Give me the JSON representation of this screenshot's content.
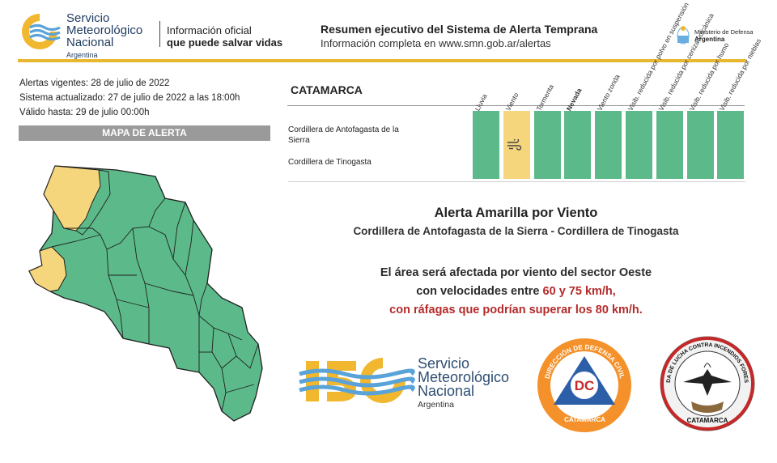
{
  "header": {
    "logo": {
      "line1": "Servicio",
      "line2": "Meteorológico",
      "line3": "Nacional",
      "line4": "Argentina"
    },
    "tagline": {
      "line1": "Información oficial",
      "line2": "que puede salvar vidas"
    },
    "summary_title": "Resumen ejecutivo del Sistema de Alerta Temprana",
    "summary_subtitle": "Información completa en www.smn.gob.ar/alertas",
    "ministry": {
      "line1": "Ministerio de Defensa",
      "line2": "Argentina"
    }
  },
  "info": {
    "vigentes": "Alertas vigentes: 28 de julio de 2022",
    "actualizado": "Sistema actualizado: 27 de julio de 2022 a las 18:00h",
    "valido": "Válido hasta: 29 de julio 00:00h"
  },
  "map_title": "MAPA DE ALERTA",
  "table": {
    "region": "CATAMARCA",
    "columns": [
      "Lluvia",
      "Viento",
      "Tormenta",
      "Nevada",
      "Viento zonda",
      "Visib. reducida por polvo en suspensión",
      "Visib. reducida por ceniza volcánica",
      "Visib. reducida por humo",
      "Visib. reducida por nieblas"
    ],
    "zones": [
      {
        "label": "Cordillera de Antofagasta de la Sierra"
      },
      {
        "label": "Cordillera de Tinogasta"
      }
    ],
    "levels": [
      "green",
      "yellow",
      "green",
      "green",
      "green",
      "green",
      "green",
      "green",
      "green"
    ]
  },
  "alert": {
    "title": "Alerta Amarilla por Viento",
    "zones": "Cordillera de Antofagasta de la Sierra - Cordillera de Tinogasta",
    "line1": "El área será afectada por viento del sector Oeste",
    "line2_prefix": "con velocidades entre ",
    "line2_highlight": "60 y 75 km/h,",
    "line3": "con ráfagas que podrían superar los 80 km/h."
  },
  "footer": {
    "smn150": {
      "line1": "Servicio",
      "line2": "Meteorológico",
      "line3": "Nacional",
      "line4": "Argentina"
    },
    "dc": {
      "ring_top": "DIRECCIÓN DE DEFENSA CIVIL",
      "center": "DC",
      "bottom": "CATAMARCA"
    },
    "brigade": {
      "ring_top": "BRIGADA DE LUCHA CONTRA INCENDIOS FORESTALES",
      "bottom": "CATAMARCA"
    }
  },
  "colors": {
    "green": "#5cba8a",
    "yellow": "#f6d67c",
    "accent_gold": "#e8b830",
    "navy": "#1e3a5f",
    "red_text": "#b52a2a"
  },
  "icons": {
    "wind": "wind-icon",
    "smn_logo": "smn-logo-icon",
    "shield": "argentina-shield-icon"
  }
}
